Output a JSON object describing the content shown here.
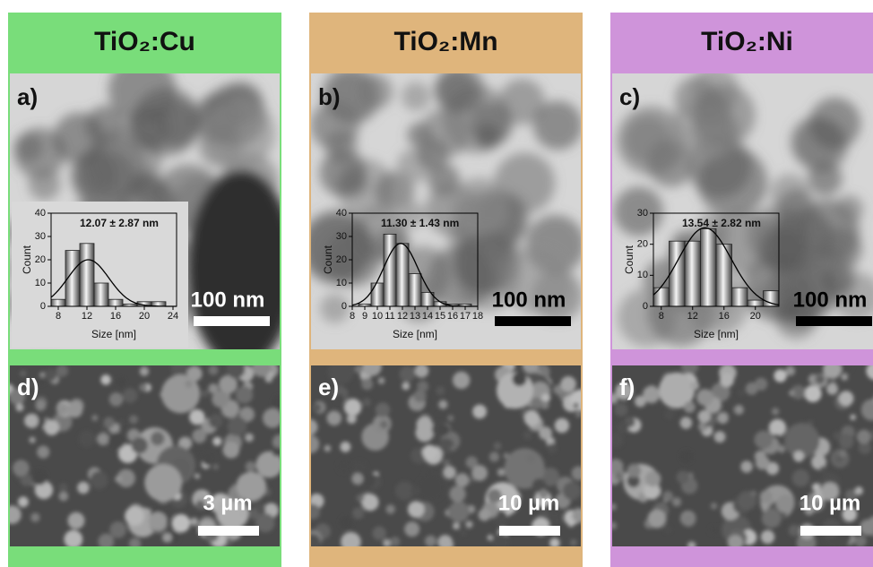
{
  "columns": [
    {
      "title": "TiO₂:Cu",
      "color": "#79dd7a",
      "tem_label": "a)",
      "tem_scale": "100 nm",
      "sem_label": "d)",
      "sem_scale": "3 µm"
    },
    {
      "title": "TiO₂:Mn",
      "color": "#dfb57c",
      "tem_label": "b)",
      "tem_scale": "100 nm",
      "sem_label": "e)",
      "sem_scale": "10 µm"
    },
    {
      "title": "TiO₂:Ni",
      "color": "#cf94da",
      "tem_label": "c)",
      "tem_scale": "100 nm",
      "sem_label": "f)",
      "sem_scale": "10 µm"
    }
  ],
  "chart_data": [
    {
      "type": "histogram",
      "annotation": "12.07 ± 2.87 nm",
      "xlabel": "Size [nm]",
      "ylabel": "Count",
      "bins": [
        7,
        9,
        11,
        13,
        15,
        17,
        19,
        21,
        23
      ],
      "counts": [
        3,
        24,
        27,
        10,
        3,
        1,
        2,
        2
      ],
      "xlim": [
        7,
        24.5
      ],
      "ylim": [
        0,
        40
      ],
      "xticks": [
        8,
        12,
        16,
        20,
        24
      ],
      "yticks": [
        0,
        10,
        20,
        30,
        40
      ]
    },
    {
      "type": "histogram",
      "annotation": "11.30 ± 1.43 nm",
      "xlabel": "Size [nm]",
      "ylabel": "Count",
      "bins": [
        8.5,
        9.5,
        10.5,
        11.5,
        12.5,
        13.5,
        14.5,
        15.5,
        16.5,
        17.5
      ],
      "counts": [
        1,
        10,
        31,
        27,
        14,
        6,
        2,
        1,
        1
      ],
      "xlim": [
        8,
        18
      ],
      "ylim": [
        0,
        40
      ],
      "xticks": [
        8,
        9,
        10,
        11,
        12,
        13,
        14,
        15,
        16,
        17,
        18
      ],
      "yticks": [
        0,
        10,
        20,
        30,
        40
      ]
    },
    {
      "type": "histogram",
      "annotation": "13.54 ± 2.82 nm",
      "xlabel": "Size [nm]",
      "ylabel": "Count",
      "bins": [
        7,
        9,
        11,
        13,
        15,
        17,
        19,
        21,
        23
      ],
      "counts": [
        6,
        21,
        21,
        25,
        20,
        6,
        2,
        5
      ],
      "xlim": [
        7,
        23
      ],
      "ylim": [
        0,
        30
      ],
      "xticks": [
        8,
        12,
        16,
        20
      ],
      "yticks": [
        0,
        10,
        20,
        30
      ]
    }
  ]
}
